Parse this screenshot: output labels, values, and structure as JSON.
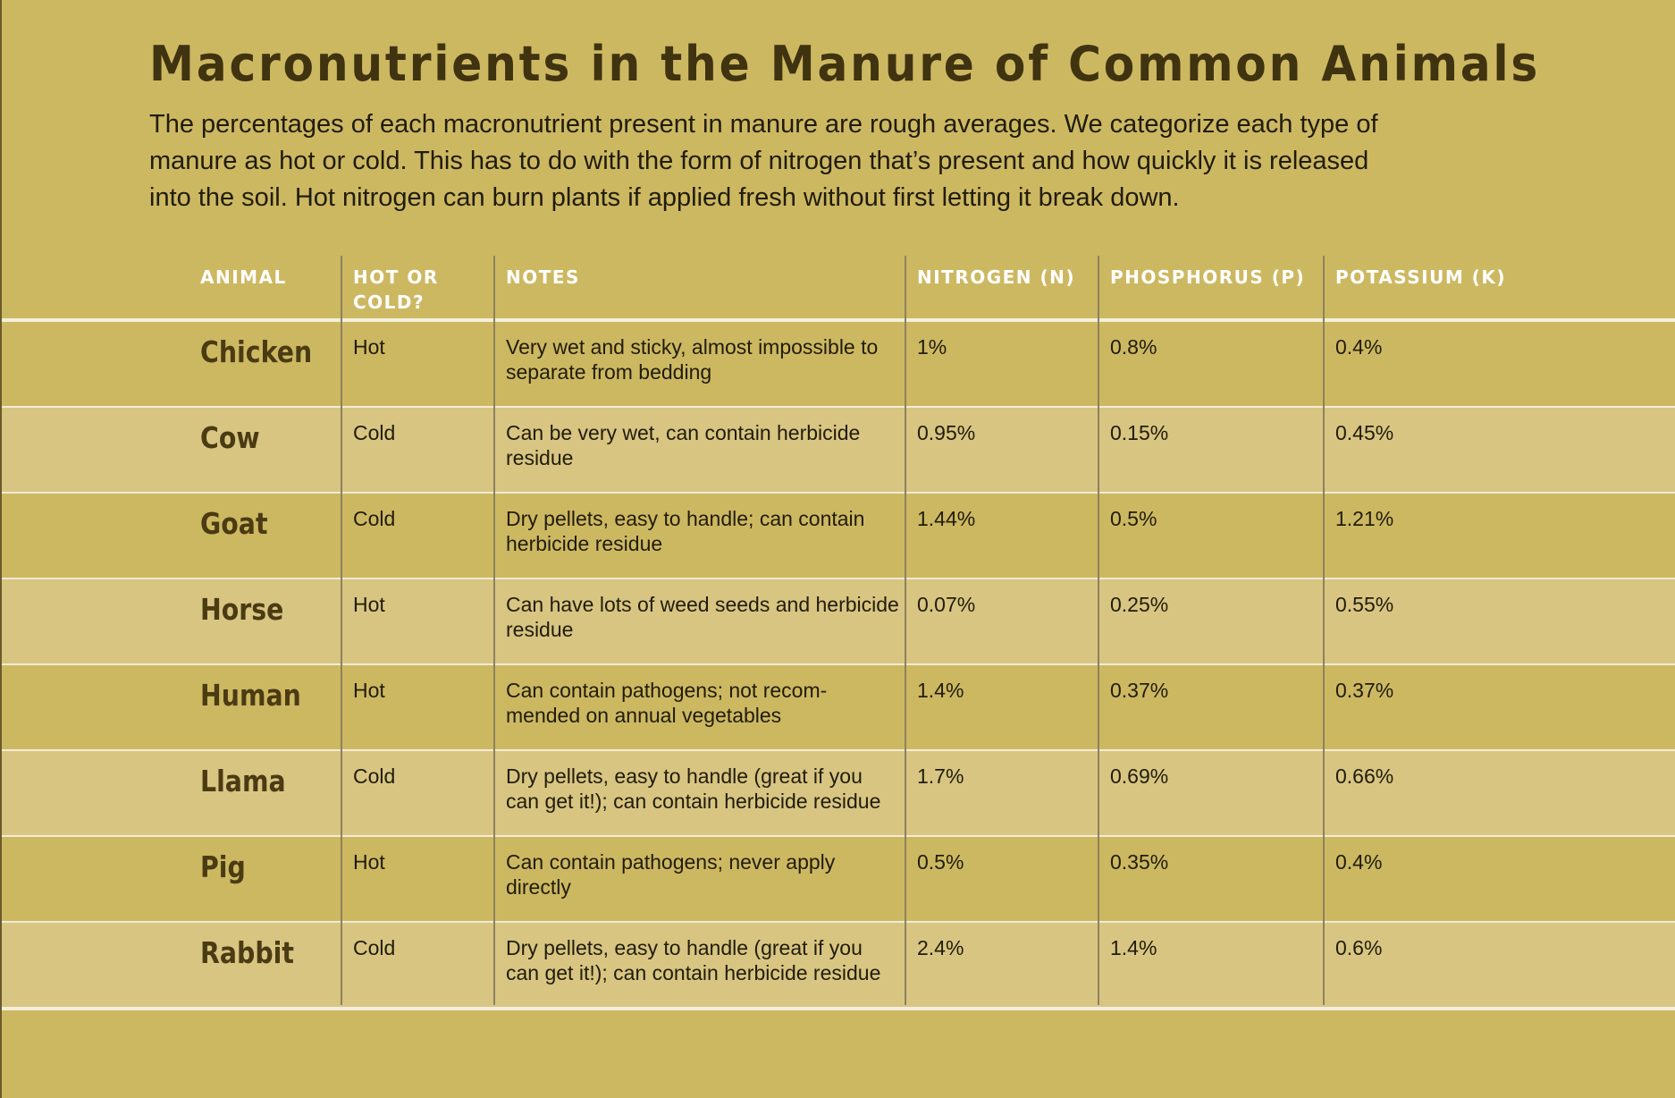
{
  "title": "Macronutrients in the Manure of Common Animals",
  "intro_lines": [
    "The percentages of each macronutrient present in manure are rough averages. We categorize each type of",
    "manure as hot or cold. This has to do with the form of nitrogen that’s present and how quickly it is released",
    "into the soil. Hot nitrogen can burn plants if applied fresh without first letting it break down."
  ],
  "headers": {
    "animal": "ANIMAL",
    "hot_or_cold_line1": "HOT OR",
    "hot_or_cold_line2": "COLD?",
    "notes": "NOTES",
    "nitrogen": "NITROGEN (N)",
    "phosphorus": "PHOSPHORUS (P)",
    "potassium": "POTASSIUM (K)"
  },
  "rows": [
    {
      "animal": "Chicken",
      "temp": "Hot",
      "notes1": "Very wet and sticky, almost impossible to",
      "notes2": "separate from bedding",
      "n": "1%",
      "p": "0.8%",
      "k": "0.4%"
    },
    {
      "animal": "Cow",
      "temp": "Cold",
      "notes1": "Can be very wet, can contain herbicide",
      "notes2": "residue",
      "n": "0.95%",
      "p": "0.15%",
      "k": "0.45%"
    },
    {
      "animal": "Goat",
      "temp": "Cold",
      "notes1": "Dry pellets, easy to handle; can contain",
      "notes2": "herbicide residue",
      "n": "1.44%",
      "p": "0.5%",
      "k": "1.21%"
    },
    {
      "animal": "Horse",
      "temp": "Hot",
      "notes1": "Can have lots of weed seeds and herbicide",
      "notes2": "residue",
      "n": "0.07%",
      "p": "0.25%",
      "k": "0.55%"
    },
    {
      "animal": "Human",
      "temp": "Hot",
      "notes1": "Can contain pathogens; not recom-",
      "notes2": "mended on annual vegetables",
      "n": "1.4%",
      "p": "0.37%",
      "k": "0.37%"
    },
    {
      "animal": "Llama",
      "temp": "Cold",
      "notes1": "Dry pellets, easy to handle (great if you",
      "notes2": "can get it!); can contain herbicide residue",
      "n": "1.7%",
      "p": "0.69%",
      "k": "0.66%"
    },
    {
      "animal": "Pig",
      "temp": "Hot",
      "notes1": "Can contain pathogens; never apply",
      "notes2": "directly",
      "n": "0.5%",
      "p": "0.35%",
      "k": "0.4%"
    },
    {
      "animal": "Rabbit",
      "temp": "Cold",
      "notes1": "Dry pellets, easy to handle (great if you",
      "notes2": "can get it!); can contain herbicide residue",
      "n": "2.4%",
      "p": "1.4%",
      "k": "0.6%"
    }
  ],
  "colors": {
    "background": "#cdb862",
    "row_alt": "#d8c582",
    "title": "#3f3310",
    "animal_name": "#4b3b13",
    "header_text": "#ffffff",
    "rule": "#f4efdc"
  }
}
